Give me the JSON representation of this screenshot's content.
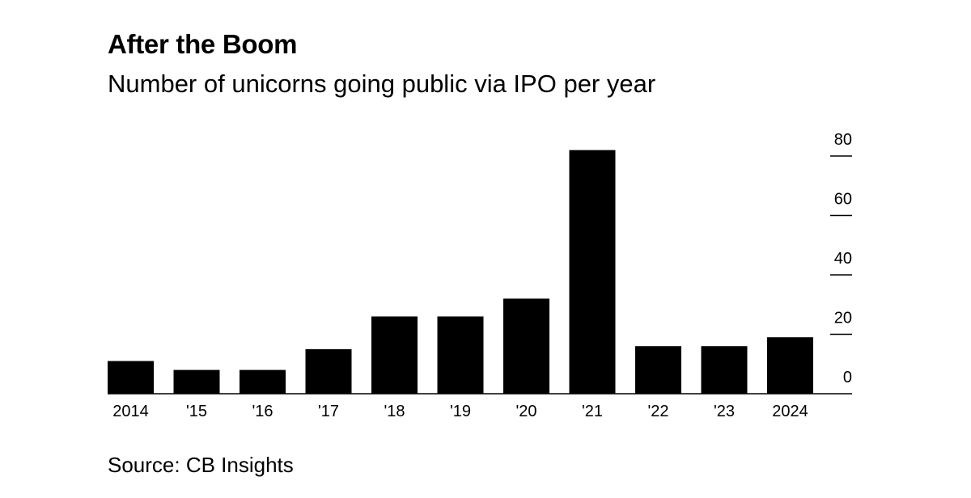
{
  "chart_data": {
    "type": "bar",
    "title": "After the Boom",
    "subtitle": "Number of unicorns going public via IPO per year",
    "source": "Source: CB Insights",
    "categories": [
      "2014",
      "'15",
      "'16",
      "'17",
      "'18",
      "'19",
      "'20",
      "'21",
      "'22",
      "'23",
      "2024"
    ],
    "values": [
      11,
      8,
      8,
      15,
      26,
      26,
      32,
      82,
      16,
      16,
      19
    ],
    "xlabel": "",
    "ylabel": "",
    "ylim": [
      0,
      80
    ],
    "yticks": [
      0,
      20,
      40,
      60,
      80
    ],
    "y_axis_position": "right",
    "grid": false,
    "bar_color": "#000000"
  }
}
